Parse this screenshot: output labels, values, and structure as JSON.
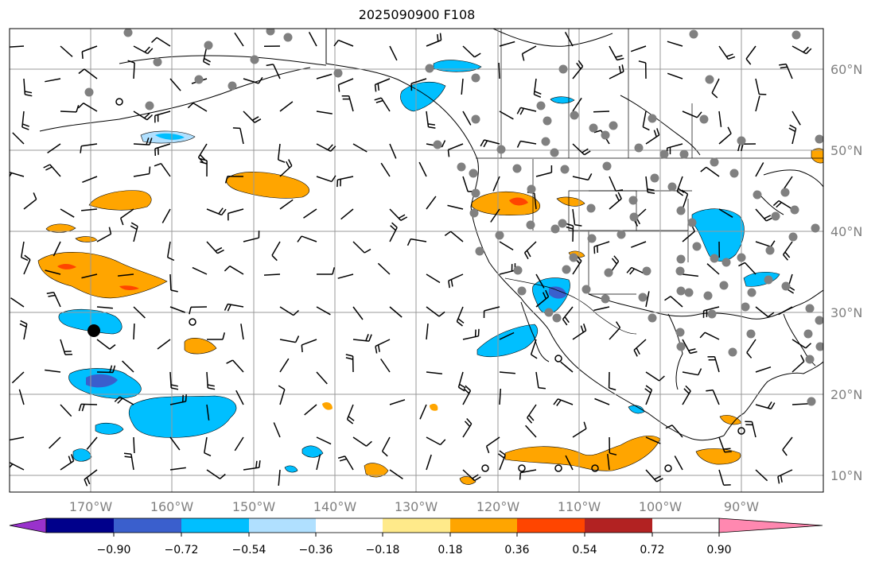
{
  "title": "2025090900 F108",
  "map": {
    "lon_range": [
      -180,
      -80
    ],
    "lat_range": [
      8,
      65
    ],
    "lon_labels": [
      "170°W",
      "160°W",
      "150°W",
      "140°W",
      "130°W",
      "120°W",
      "110°W",
      "100°W",
      "90°W"
    ],
    "lat_labels": [
      "10°N",
      "20°N",
      "30°N",
      "40°N",
      "50°N",
      "60°N"
    ],
    "grid": true
  },
  "colorbar": {
    "ticks": [
      "−0.90",
      "−0.72",
      "−0.54",
      "−0.36",
      "−0.18",
      "0.18",
      "0.36",
      "0.54",
      "0.72",
      "0.90"
    ],
    "colors": [
      "#9932cc",
      "#00008b",
      "#3a5fcd",
      "#00bfff",
      "#b0e0ff",
      "#ffffff",
      "#ffea8a",
      "#ffa500",
      "#ff4500",
      "#b22222",
      "#ff88b0"
    ]
  }
}
